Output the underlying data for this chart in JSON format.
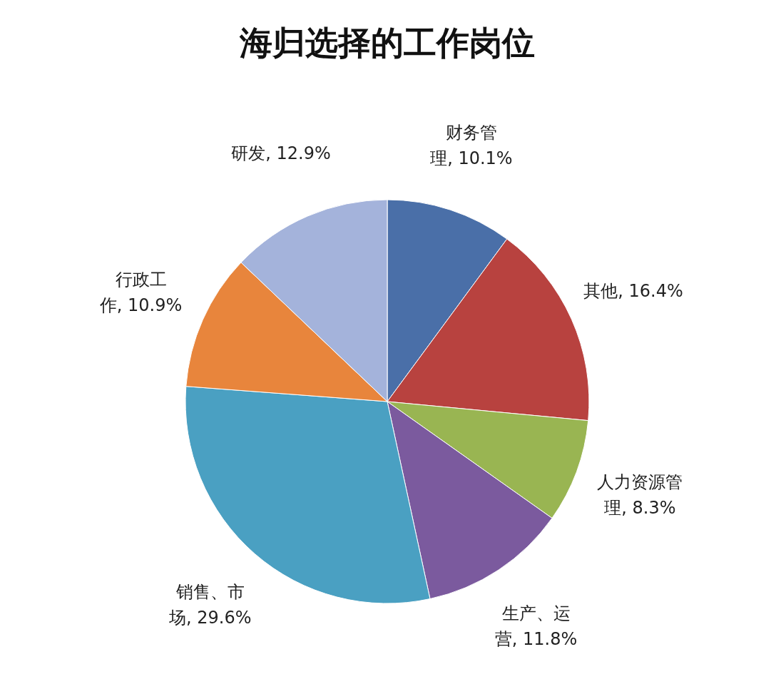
{
  "chart_data": {
    "type": "pie",
    "title": "海归选择的工作岗位",
    "categories": [
      "财务管理",
      "其他",
      "人力资源管理",
      "生产、运营",
      "销售、市场",
      "行政工作",
      "研发"
    ],
    "values": [
      10.1,
      16.4,
      8.3,
      11.8,
      29.6,
      10.9,
      12.9
    ],
    "value_labels": [
      "10.1%",
      "16.4%",
      "8.3%",
      "11.8%",
      "29.6%",
      "10.9%",
      "12.9%"
    ],
    "colors": [
      "#4a6fa8",
      "#b8423f",
      "#99b552",
      "#7b5a9e",
      "#4aa0c2",
      "#e8853c",
      "#a4b3db"
    ],
    "legend": false
  }
}
